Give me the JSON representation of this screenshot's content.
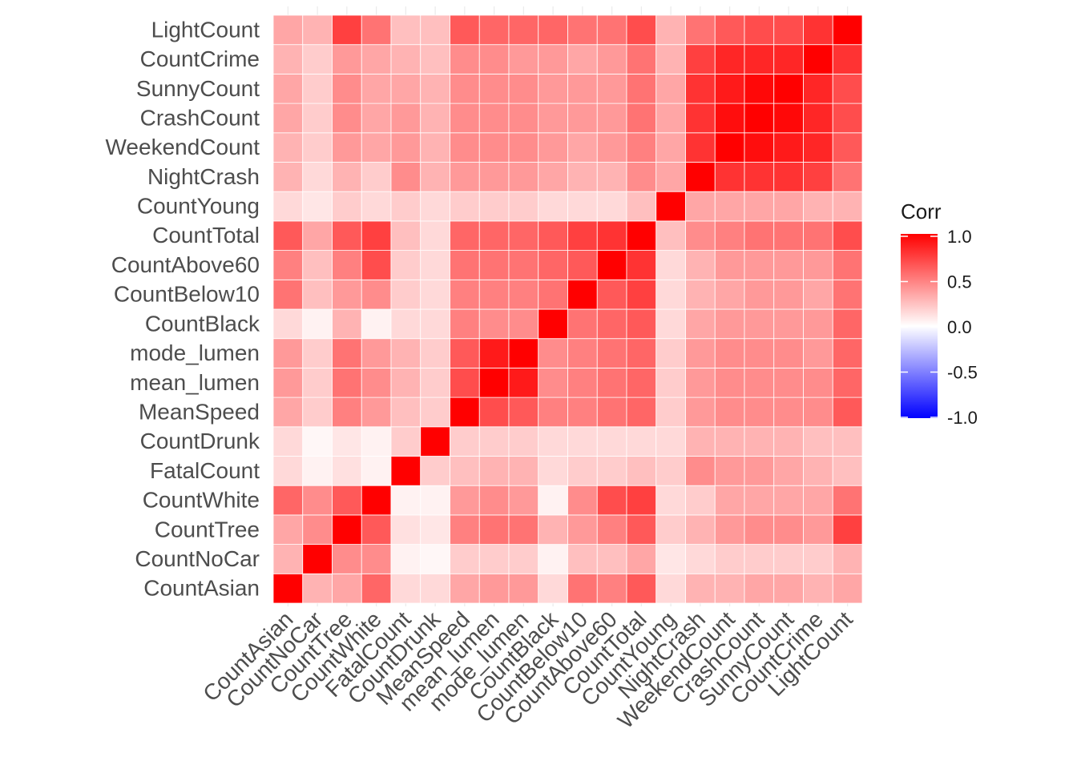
{
  "chart_data": {
    "type": "heatmap",
    "title": "",
    "xlabel": "",
    "ylabel": "",
    "variables": [
      "CountAsian",
      "CountNoCar",
      "CountTree",
      "CountWhite",
      "FatalCount",
      "CountDrunk",
      "MeanSpeed",
      "mean_lumen",
      "mode_lumen",
      "CountBlack",
      "CountBelow10",
      "CountAbove60",
      "CountTotal",
      "CountYoung",
      "NightCrash",
      "WeekendCount",
      "CrashCount",
      "SunnyCount",
      "CountCrime",
      "LightCount"
    ],
    "values": [
      [
        1.0,
        0.3,
        0.35,
        0.6,
        0.15,
        0.15,
        0.35,
        0.4,
        0.4,
        0.15,
        0.55,
        0.5,
        0.65,
        0.15,
        0.3,
        0.3,
        0.35,
        0.35,
        0.3,
        0.35
      ],
      [
        0.3,
        1.0,
        0.45,
        0.45,
        0.05,
        0.03,
        0.2,
        0.2,
        0.2,
        0.05,
        0.25,
        0.25,
        0.35,
        0.1,
        0.15,
        0.2,
        0.2,
        0.2,
        0.2,
        0.3
      ],
      [
        0.35,
        0.45,
        1.0,
        0.65,
        0.12,
        0.1,
        0.5,
        0.55,
        0.55,
        0.3,
        0.4,
        0.5,
        0.65,
        0.2,
        0.3,
        0.4,
        0.45,
        0.45,
        0.4,
        0.75
      ],
      [
        0.6,
        0.45,
        0.65,
        1.0,
        0.05,
        0.05,
        0.4,
        0.45,
        0.4,
        0.05,
        0.45,
        0.7,
        0.75,
        0.15,
        0.2,
        0.35,
        0.35,
        0.35,
        0.35,
        0.55
      ],
      [
        0.15,
        0.05,
        0.12,
        0.05,
        1.0,
        0.2,
        0.25,
        0.3,
        0.3,
        0.15,
        0.2,
        0.2,
        0.25,
        0.2,
        0.45,
        0.4,
        0.4,
        0.35,
        0.3,
        0.25
      ],
      [
        0.15,
        0.03,
        0.1,
        0.05,
        0.2,
        1.0,
        0.2,
        0.2,
        0.2,
        0.15,
        0.15,
        0.15,
        0.15,
        0.15,
        0.3,
        0.3,
        0.3,
        0.3,
        0.25,
        0.25
      ],
      [
        0.35,
        0.2,
        0.5,
        0.4,
        0.25,
        0.2,
        1.0,
        0.7,
        0.65,
        0.5,
        0.5,
        0.55,
        0.6,
        0.2,
        0.4,
        0.45,
        0.45,
        0.45,
        0.45,
        0.65
      ],
      [
        0.4,
        0.2,
        0.55,
        0.45,
        0.3,
        0.2,
        0.7,
        1.0,
        0.9,
        0.45,
        0.5,
        0.55,
        0.6,
        0.2,
        0.4,
        0.45,
        0.45,
        0.45,
        0.45,
        0.6
      ],
      [
        0.4,
        0.2,
        0.55,
        0.4,
        0.3,
        0.2,
        0.65,
        0.9,
        1.0,
        0.45,
        0.5,
        0.55,
        0.6,
        0.2,
        0.4,
        0.45,
        0.45,
        0.45,
        0.4,
        0.6
      ],
      [
        0.15,
        0.05,
        0.3,
        0.05,
        0.15,
        0.15,
        0.5,
        0.45,
        0.45,
        1.0,
        0.55,
        0.6,
        0.65,
        0.15,
        0.35,
        0.4,
        0.4,
        0.4,
        0.4,
        0.6
      ],
      [
        0.55,
        0.25,
        0.4,
        0.45,
        0.2,
        0.15,
        0.5,
        0.5,
        0.5,
        0.55,
        1.0,
        0.65,
        0.75,
        0.15,
        0.3,
        0.35,
        0.4,
        0.4,
        0.35,
        0.55
      ],
      [
        0.5,
        0.25,
        0.5,
        0.7,
        0.2,
        0.15,
        0.55,
        0.55,
        0.55,
        0.6,
        0.65,
        1.0,
        0.8,
        0.15,
        0.3,
        0.4,
        0.4,
        0.4,
        0.4,
        0.55
      ],
      [
        0.65,
        0.35,
        0.65,
        0.75,
        0.25,
        0.15,
        0.6,
        0.6,
        0.6,
        0.65,
        0.75,
        0.8,
        1.0,
        0.25,
        0.45,
        0.5,
        0.55,
        0.55,
        0.55,
        0.7
      ],
      [
        0.15,
        0.1,
        0.2,
        0.15,
        0.2,
        0.15,
        0.2,
        0.2,
        0.2,
        0.15,
        0.15,
        0.15,
        0.25,
        1.0,
        0.35,
        0.35,
        0.35,
        0.35,
        0.3,
        0.3
      ],
      [
        0.3,
        0.15,
        0.3,
        0.2,
        0.45,
        0.3,
        0.4,
        0.4,
        0.4,
        0.35,
        0.3,
        0.3,
        0.45,
        0.35,
        1.0,
        0.8,
        0.8,
        0.8,
        0.75,
        0.55
      ],
      [
        0.3,
        0.2,
        0.4,
        0.35,
        0.4,
        0.3,
        0.45,
        0.45,
        0.45,
        0.4,
        0.35,
        0.4,
        0.5,
        0.35,
        0.8,
        1.0,
        0.95,
        0.9,
        0.85,
        0.65
      ],
      [
        0.35,
        0.2,
        0.45,
        0.35,
        0.4,
        0.3,
        0.45,
        0.45,
        0.45,
        0.4,
        0.4,
        0.4,
        0.55,
        0.35,
        0.8,
        0.95,
        1.0,
        0.97,
        0.85,
        0.7
      ],
      [
        0.35,
        0.2,
        0.45,
        0.35,
        0.35,
        0.3,
        0.45,
        0.45,
        0.45,
        0.4,
        0.4,
        0.4,
        0.55,
        0.35,
        0.8,
        0.9,
        0.97,
        1.0,
        0.85,
        0.7
      ],
      [
        0.3,
        0.2,
        0.4,
        0.35,
        0.3,
        0.25,
        0.45,
        0.45,
        0.4,
        0.4,
        0.35,
        0.4,
        0.55,
        0.3,
        0.75,
        0.85,
        0.85,
        0.85,
        1.0,
        0.8
      ],
      [
        0.35,
        0.3,
        0.75,
        0.55,
        0.25,
        0.25,
        0.65,
        0.6,
        0.6,
        0.6,
        0.55,
        0.55,
        0.7,
        0.3,
        0.55,
        0.65,
        0.7,
        0.7,
        0.8,
        1.0
      ]
    ],
    "legend": {
      "title": "Corr",
      "ticks": [
        "1.0",
        "0.5",
        "0.0",
        "-0.5",
        "-1.0"
      ],
      "tick_values": [
        1.0,
        0.5,
        0.0,
        -0.5,
        -1.0
      ],
      "placement": "right"
    },
    "range": [
      -1.0,
      1.0
    ],
    "colors": {
      "high": "#ff0000",
      "mid": "#ffffff",
      "low": "#0000ff",
      "grid": "#ebebeb",
      "tile_border": "#ffffff",
      "label": "#4d4d4d",
      "legend_text": "#1a1a1a"
    },
    "grid": false
  }
}
